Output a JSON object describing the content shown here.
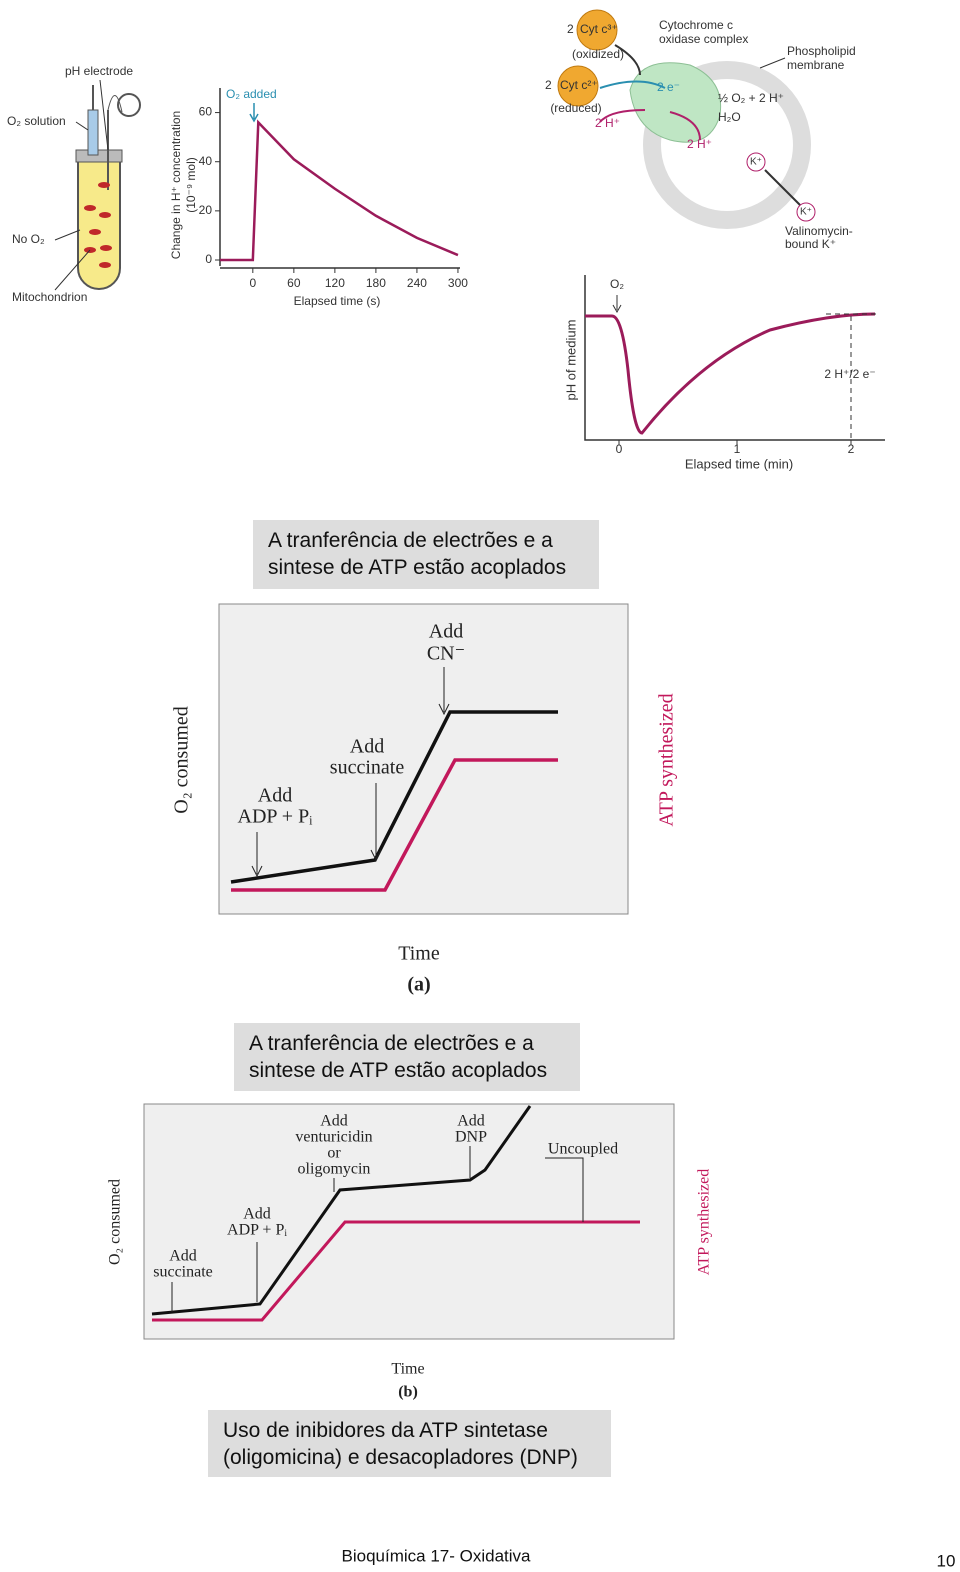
{
  "apparatus": {
    "ph_electrode": "pH electrode",
    "o2_solution": "O₂ solution",
    "no_o2": "No O₂",
    "mitochondrion": "Mitochondrion"
  },
  "h_plus_chart": {
    "type": "line",
    "annotation": "O₂ added",
    "y_label": "Change in H⁺ concentration",
    "y_label_unit": "(10⁻⁹ mol)",
    "x_label": "Elapsed time (s)",
    "x": [
      -48,
      0,
      8,
      60,
      120,
      180,
      240,
      300
    ],
    "values": [
      0,
      0,
      56,
      41,
      29,
      18,
      9,
      2
    ],
    "color": "#9b1b5a",
    "xlim": [
      -48,
      303
    ],
    "ylim": [
      0,
      70
    ],
    "xticks": [
      0,
      60,
      120,
      180,
      240,
      300
    ],
    "yticks": [
      0,
      20,
      40,
      60
    ]
  },
  "membrane_diagram": {
    "cyt_ox_count": "2",
    "cyt_ox": "Cyt c³⁺",
    "cyt_ox_state": "(oxidized)",
    "cyt_red_count": "2",
    "cyt_red": "Cyt c²⁺",
    "cyt_red_state": "(reduced)",
    "h_out": "2 H⁺",
    "complex_1": "Cytochrome c",
    "complex_2": "oxidase complex",
    "membrane_1": "Phospholipid",
    "membrane_2": "membrane",
    "electrons": "2 e⁻",
    "oxygen": "½ O₂ + 2 H⁺",
    "water": "H₂O",
    "h_in": "2 H⁺",
    "k_free": "K⁺",
    "k_bound": "K⁺",
    "valinomycin_1": "Valinomycin-",
    "valinomycin_2": "bound K⁺"
  },
  "ph_chart": {
    "annotation": "O₂",
    "y_label": "pH of medium",
    "x_label": "Elapsed time (min)",
    "ratio": "2 H⁺/2 e⁻",
    "xticks": [
      "0",
      "1",
      "2"
    ]
  },
  "caption_1": [
    "A tranferência de electrões e a",
    "sintese de ATP estão acoplados"
  ],
  "figure_a": {
    "cn_1": "Add",
    "cn_2": "CN⁻",
    "succ_1": "Add",
    "succ_2": "succinate",
    "adp_1": "Add",
    "adp_2": "ADP + Pᵢ",
    "y_label": "O₂ consumed",
    "y2_label": "ATP synthesized",
    "x_label": "Time",
    "panel": "(a)"
  },
  "caption_2": [
    "A tranferência de electrões e a",
    "sintese de ATP estão acoplados"
  ],
  "figure_b": {
    "olig_1": "Add",
    "olig_2": "venturicidin",
    "olig_3": "or",
    "olig_4": "oligomycin",
    "dnp_1": "Add",
    "dnp_2": "DNP",
    "uncoupled": "Uncoupled",
    "adp_1": "Add",
    "adp_2": "ADP + Pᵢ",
    "succ_1": "Add",
    "succ_2": "succinate",
    "y_label": "O₂ consumed",
    "y2_label": "ATP synthesized",
    "x_label": "Time",
    "panel": "(b)"
  },
  "caption_3": [
    "Uso de inibidores da ATP sintetase",
    "(oligomicina) e desacopladores (DNP)"
  ],
  "footer": {
    "course": "Bioquímica 17- Oxidativa",
    "page": "10"
  }
}
